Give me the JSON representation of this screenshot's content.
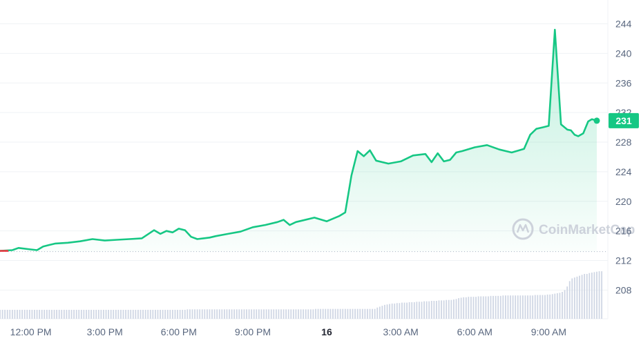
{
  "chart_data": {
    "type": "area",
    "title": "",
    "xlabel": "",
    "ylabel": "",
    "ylim": [
      204,
      246
    ],
    "y_ticks": [
      "244",
      "240",
      "236",
      "232",
      "228",
      "224",
      "220",
      "216",
      "212",
      "208"
    ],
    "x_ticks": [
      {
        "label": "12:00 PM",
        "hour": 12,
        "bold": false
      },
      {
        "label": "3:00 PM",
        "hour": 15,
        "bold": false
      },
      {
        "label": "6:00 PM",
        "hour": 18,
        "bold": false
      },
      {
        "label": "9:00 PM",
        "hour": 21,
        "bold": false
      },
      {
        "label": "16",
        "hour": 24,
        "bold": true
      },
      {
        "label": "3:00 AM",
        "hour": 27,
        "bold": false
      },
      {
        "label": "6:00 AM",
        "hour": 30,
        "bold": false
      },
      {
        "label": "9:00 AM",
        "hour": 33,
        "bold": false
      }
    ],
    "xlim_hours": [
      10.75,
      34.95
    ],
    "series": [
      {
        "name": "",
        "color": "#16c784",
        "start_color": "#ea3943",
        "x_hours": [
          10.75,
          11.25,
          11.5,
          12.0,
          12.25,
          12.5,
          12.75,
          13.0,
          13.5,
          14.0,
          14.5,
          15.0,
          15.5,
          16.0,
          16.5,
          17.0,
          17.25,
          17.5,
          17.75,
          18.0,
          18.25,
          18.5,
          18.75,
          19.0,
          19.25,
          19.5,
          20.0,
          20.5,
          21.0,
          21.5,
          22.0,
          22.25,
          22.5,
          22.75,
          23.0,
          23.5,
          24.0,
          24.5,
          24.75,
          25.0,
          25.25,
          25.5,
          25.75,
          26.0,
          26.5,
          27.0,
          27.5,
          28.0,
          28.25,
          28.5,
          28.75,
          29.0,
          29.25,
          29.5,
          30.0,
          30.5,
          31.0,
          31.5,
          32.0,
          32.25,
          32.5,
          32.75,
          33.0,
          33.25,
          33.5,
          33.75,
          33.9,
          34.05,
          34.2,
          34.4,
          34.6,
          34.75,
          34.95
        ],
        "y": [
          213.3,
          213.4,
          213.7,
          213.5,
          213.4,
          213.9,
          214.1,
          214.3,
          214.4,
          214.6,
          214.9,
          214.7,
          214.8,
          214.9,
          215.0,
          216.1,
          215.6,
          216.0,
          215.8,
          216.3,
          216.1,
          215.2,
          214.9,
          215.0,
          215.1,
          215.3,
          215.6,
          215.9,
          216.5,
          216.8,
          217.2,
          217.5,
          216.8,
          217.2,
          217.4,
          217.8,
          217.3,
          218.0,
          218.5,
          223.5,
          226.8,
          226.1,
          226.9,
          225.5,
          225.1,
          225.4,
          226.2,
          226.4,
          225.3,
          226.5,
          225.4,
          225.6,
          226.6,
          226.8,
          227.3,
          227.6,
          227.0,
          226.6,
          227.1,
          229.0,
          229.8,
          230.0,
          230.2,
          243.2,
          230.4,
          229.7,
          229.6,
          229.0,
          228.8,
          229.2,
          230.8,
          231.1,
          230.9
        ]
      }
    ],
    "volume": {
      "color": "#cfd6e4",
      "x_hours_start": 10.75,
      "x_hours_step": 0.1,
      "values": [
        1.0,
        1.0,
        1.0,
        1.0,
        1.0,
        1.0,
        1.0,
        1.0,
        1.0,
        1.0,
        1.0,
        1.0,
        1.0,
        1.0,
        1.0,
        1.0,
        1.0,
        1.0,
        1.0,
        1.0,
        1.0,
        1.0,
        1.0,
        1.0,
        1.0,
        1.0,
        1.0,
        1.0,
        1.0,
        1.0,
        1.0,
        1.0,
        1.0,
        1.0,
        1.0,
        1.0,
        1.0,
        1.0,
        1.0,
        1.0,
        1.0,
        1.0,
        1.0,
        1.0,
        1.0,
        1.0,
        1.0,
        1.0,
        1.0,
        1.0,
        1.0,
        1.0,
        1.0,
        1.0,
        1.0,
        1.0,
        1.0,
        1.0,
        1.0,
        1.0,
        1.0,
        1.0,
        1.0,
        1.0,
        1.0,
        1.0,
        1.0,
        1.0,
        1.0,
        1.0,
        1.0,
        1.0,
        1.0,
        1.0,
        1.0,
        1.0,
        1.05,
        1.05,
        1.05,
        1.05,
        1.05,
        1.05,
        1.05,
        1.05,
        1.05,
        1.05,
        1.05,
        1.05,
        1.05,
        1.05,
        1.05,
        1.05,
        1.05,
        1.05,
        1.05,
        1.05,
        1.05,
        1.05,
        1.05,
        1.05,
        1.05,
        1.05,
        1.05,
        1.05,
        1.05,
        1.05,
        1.05,
        1.05,
        1.05,
        1.05,
        1.05,
        1.05,
        1.05,
        1.05,
        1.05,
        1.05,
        1.05,
        1.05,
        1.05,
        1.05,
        1.05,
        1.05,
        1.05,
        1.05,
        1.05,
        1.05,
        1.05,
        1.05,
        1.1,
        1.1,
        1.1,
        1.1,
        1.1,
        1.1,
        1.1,
        1.1,
        1.1,
        1.1,
        1.1,
        1.1,
        1.1,
        1.1,
        1.1,
        1.1,
        1.1,
        1.1,
        1.1,
        1.1,
        1.1,
        1.1,
        1.1,
        1.1,
        1.1,
        1.25,
        1.35,
        1.45,
        1.55,
        1.6,
        1.65,
        1.7,
        1.7,
        1.75,
        1.75,
        1.8,
        1.8,
        1.8,
        1.85,
        1.85,
        1.85,
        1.9,
        1.9,
        1.9,
        1.95,
        1.95,
        1.95,
        2.0,
        2.0,
        2.0,
        2.05,
        2.05,
        2.05,
        2.1,
        2.1,
        2.1,
        2.15,
        2.2,
        2.3,
        2.35,
        2.4,
        2.4,
        2.45,
        2.45,
        2.45,
        2.45,
        2.5,
        2.5,
        2.5,
        2.5,
        2.5,
        2.55,
        2.55,
        2.55,
        2.55,
        2.55,
        2.6,
        2.6,
        2.6,
        2.6,
        2.6,
        2.6,
        2.6,
        2.6,
        2.6,
        2.6,
        2.6,
        2.6,
        2.6,
        2.65,
        2.65,
        2.65,
        2.65,
        2.65,
        2.7,
        2.7,
        2.75,
        2.8,
        2.85,
        2.9,
        3.0,
        3.2,
        3.6,
        4.2,
        4.5,
        4.6,
        4.7,
        4.8,
        4.9,
        5.0,
        5.0,
        5.1,
        5.15,
        5.2,
        5.25,
        5.3,
        5.3
      ]
    },
    "current_price": "231",
    "grid": true,
    "watermark": "CoinMarketCap"
  }
}
